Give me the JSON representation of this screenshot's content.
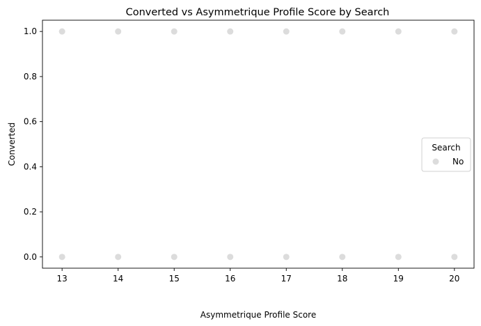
{
  "chart_data": {
    "type": "scatter",
    "title": "Converted vs Asymmetrique Profile Score by Search",
    "xlabel": "Asymmetrique Profile Score",
    "ylabel": "Converted",
    "xlim": [
      12.65,
      20.35
    ],
    "ylim": [
      -0.05,
      1.05
    ],
    "xticks": [
      13,
      14,
      15,
      16,
      17,
      18,
      19,
      20
    ],
    "yticks": [
      0.0,
      0.2,
      0.4,
      0.6,
      0.8,
      1.0
    ],
    "ytick_labels": [
      "0.0",
      "0.2",
      "0.4",
      "0.6",
      "0.8",
      "1.0"
    ],
    "grid": false,
    "legend": {
      "title": "Search",
      "placement": "right"
    },
    "series": [
      {
        "name": "No",
        "color": "#dcdcdc",
        "points": [
          [
            13,
            1
          ],
          [
            14,
            1
          ],
          [
            15,
            1
          ],
          [
            16,
            1
          ],
          [
            17,
            1
          ],
          [
            18,
            1
          ],
          [
            19,
            1
          ],
          [
            20,
            1
          ],
          [
            13,
            0
          ],
          [
            14,
            0
          ],
          [
            15,
            0
          ],
          [
            16,
            0
          ],
          [
            17,
            0
          ],
          [
            18,
            0
          ],
          [
            19,
            0
          ],
          [
            20,
            0
          ]
        ]
      }
    ]
  }
}
